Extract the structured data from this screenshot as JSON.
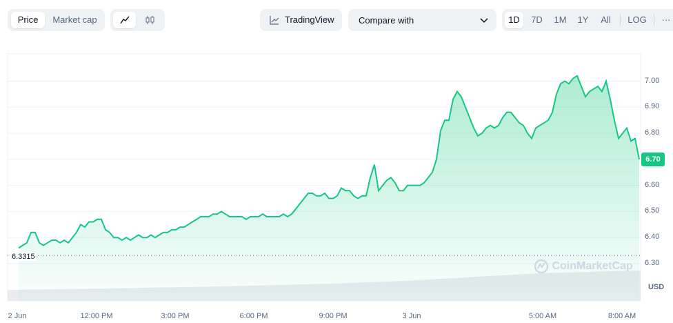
{
  "toolbar": {
    "price_label": "Price",
    "market_cap_label": "Market cap",
    "line_icon": "line-chart-icon",
    "candle_icon": "candlestick-icon",
    "tradingview_label": "TradingView",
    "compare_label": "Compare with",
    "ranges": [
      "1D",
      "7D",
      "1M",
      "1Y",
      "All"
    ],
    "active_range": "1D",
    "log_label": "LOG",
    "more_label": "···"
  },
  "colors": {
    "line": "#16c784",
    "label_bg": "#16c784",
    "grid": "#eff2f5"
  },
  "watermark": "CoinMarketCap",
  "currency_label": "USD",
  "open_price_label": "6.3315",
  "current_price_label": "6.70",
  "chart_data": {
    "type": "area",
    "ylabel_ticks": [
      "7.00",
      "6.90",
      "6.80",
      "6.70",
      "6.60",
      "6.50",
      "6.40",
      "6.30"
    ],
    "ylim": [
      6.28,
      7.04
    ],
    "xlabels": [
      "2 Jun",
      "12:00 PM",
      "3:00 PM",
      "6:00 PM",
      "9:00 PM",
      "3 Jun",
      "5:00 AM",
      "8:00 AM"
    ],
    "grid": true,
    "open_price": 6.3315,
    "series": [
      {
        "values": [
          6.36,
          6.37,
          6.38,
          6.42,
          6.42,
          6.38,
          6.37,
          6.38,
          6.39,
          6.39,
          6.38,
          6.39,
          6.38,
          6.4,
          6.42,
          6.45,
          6.44,
          6.46,
          6.46,
          6.47,
          6.47,
          6.43,
          6.42,
          6.4,
          6.4,
          6.39,
          6.4,
          6.39,
          6.4,
          6.41,
          6.4,
          6.4,
          6.41,
          6.4,
          6.41,
          6.42,
          6.42,
          6.43,
          6.43,
          6.44,
          6.44,
          6.45,
          6.46,
          6.47,
          6.48,
          6.48,
          6.48,
          6.49,
          6.49,
          6.5,
          6.49,
          6.48,
          6.48,
          6.48,
          6.48,
          6.47,
          6.48,
          6.48,
          6.48,
          6.49,
          6.48,
          6.48,
          6.48,
          6.48,
          6.49,
          6.48,
          6.49,
          6.51,
          6.53,
          6.55,
          6.57,
          6.57,
          6.56,
          6.56,
          6.57,
          6.55,
          6.55,
          6.56,
          6.59,
          6.58,
          6.58,
          6.56,
          6.55,
          6.56,
          6.56,
          6.63,
          6.68,
          6.58,
          6.6,
          6.62,
          6.63,
          6.61,
          6.58,
          6.58,
          6.6,
          6.6,
          6.6,
          6.6,
          6.61,
          6.63,
          6.65,
          6.7,
          6.81,
          6.85,
          6.85,
          6.93,
          6.96,
          6.94,
          6.9,
          6.86,
          6.82,
          6.79,
          6.8,
          6.82,
          6.83,
          6.82,
          6.83,
          6.86,
          6.88,
          6.88,
          6.86,
          6.84,
          6.83,
          6.8,
          6.78,
          6.82,
          6.83,
          6.84,
          6.85,
          6.88,
          6.95,
          6.99,
          7.0,
          6.99,
          7.01,
          7.02,
          6.98,
          6.94,
          6.96,
          6.97,
          6.98,
          6.96,
          7.0,
          6.93,
          6.85,
          6.78,
          6.8,
          6.82,
          6.77,
          6.78,
          6.7
        ]
      }
    ]
  }
}
